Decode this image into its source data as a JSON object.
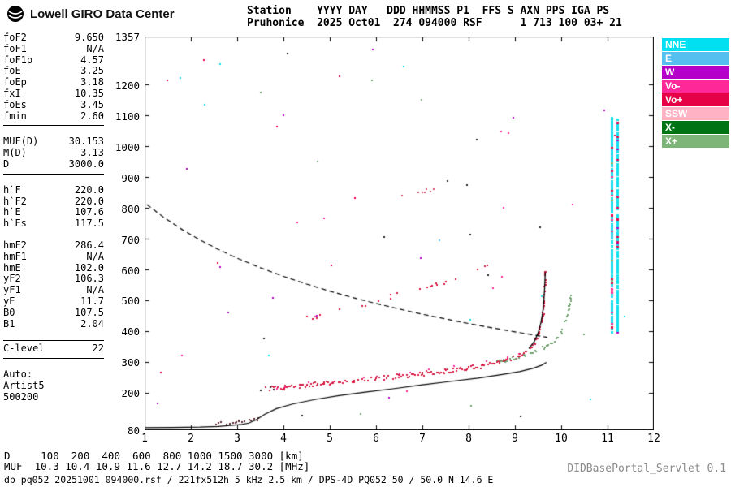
{
  "logo": {
    "text": "Lowell GIRO Data Center"
  },
  "header": {
    "line1": "Station    YYYY DAY   DDD HHMMSS P1  FFS S AXN PPS IGA PS",
    "line2": "Pruhonice  2025 Oct01  274 094000 RSF      1 713 100 03+ 21"
  },
  "panel": {
    "groups": [
      {
        "rows": [
          [
            "foF2",
            "9.650"
          ],
          [
            "foF1",
            "N/A"
          ],
          [
            "foF1p",
            "4.57"
          ],
          [
            "foE",
            "3.25"
          ],
          [
            "foEp",
            "3.18"
          ],
          [
            "fxI",
            "10.35"
          ],
          [
            "foEs",
            "3.45"
          ],
          [
            "fmin",
            "2.60"
          ]
        ],
        "sep_after": true
      },
      {
        "rows": [
          [
            "MUF(D)",
            "30.153"
          ],
          [
            "M(D)",
            "3.13"
          ],
          [
            "D",
            "3000.0"
          ]
        ],
        "sep_after": true
      },
      {
        "rows": [
          [
            "h`F",
            "220.0"
          ],
          [
            "h`F2",
            "220.0"
          ],
          [
            "h`E",
            "107.6"
          ],
          [
            "h`Es",
            "117.5"
          ]
        ]
      },
      {
        "rows": [
          [
            "hmF2",
            "286.4"
          ],
          [
            "hmF1",
            "N/A"
          ],
          [
            "hmE",
            "102.0"
          ],
          [
            "yF2",
            "106.3"
          ],
          [
            "yF1",
            "N/A"
          ],
          [
            "yE",
            "11.7"
          ],
          [
            "B0",
            "107.5"
          ],
          [
            "B1",
            "2.04"
          ]
        ]
      },
      {
        "rows": [
          [
            "C-level",
            "22"
          ]
        ],
        "sep_before": true,
        "sep_after": true
      },
      {
        "lines": [
          "Auto:",
          "Artist5",
          "500200"
        ]
      }
    ]
  },
  "legend": {
    "items": [
      {
        "label": "NNE",
        "color": "#00E0F0"
      },
      {
        "label": "E",
        "color": "#55C0F0"
      },
      {
        "label": "W",
        "color": "#B400C8"
      },
      {
        "label": "Vo-",
        "color": "#FF2898"
      },
      {
        "label": "Vo+",
        "color": "#E60046"
      },
      {
        "label": "SSW",
        "color": "#FFB2C4"
      },
      {
        "label": "X-",
        "color": "#007414"
      },
      {
        "label": "X+",
        "color": "#7DB478"
      }
    ]
  },
  "dmuf": {
    "d_label": "D",
    "distances": [
      "100",
      "200",
      "400",
      "600",
      "800",
      "1000",
      "1500",
      "3000"
    ],
    "d_unit": "[km]",
    "muf_label": "MUF",
    "muf_values": [
      "10.3",
      "10.4",
      "10.9",
      "11.6",
      "12.7",
      "14.2",
      "18.7",
      "30.2"
    ],
    "muf_unit": "[MHz]"
  },
  "footer": {
    "db_line": "db pq052 20251001 094000.rsf / 221fx512h 5 kHz 2.5 km / DPS-4D PQ052 50 / 50.0 N 14.6 E",
    "servlet": "DIDBasePortal_Servlet 0.1"
  },
  "chart_data": {
    "type": "scatter",
    "xlabel": "[MHz]",
    "ylabel": "[km]",
    "xlim": [
      1,
      12
    ],
    "ylim": [
      80,
      1357
    ],
    "x_ticks": [
      1,
      2,
      3,
      4,
      5,
      6,
      7,
      8,
      9,
      10,
      11,
      12
    ],
    "y_ticks": [
      1357,
      1200,
      1100,
      1000,
      900,
      800,
      700,
      600,
      500,
      400,
      300,
      200,
      80
    ],
    "grid": false,
    "legend_position": "right",
    "key_values": {
      "foF2_MHz": 9.65,
      "fxI_MHz": 10.35,
      "hmF2_km": 286.4,
      "hpF_km": 220.0,
      "MUF3000_MHz": 30.2
    },
    "series": [
      {
        "name": "interference-column-a",
        "kind": "column",
        "color": "#10DFEE",
        "x": 11.08,
        "w": 3,
        "gap": 5,
        "h_range": [
          395,
          1095
        ],
        "speckle": [
          "#E60046",
          "#FF2898",
          "#7DB478",
          "#55C0F0"
        ],
        "speckle_p": 0.12
      },
      {
        "name": "interference-column-b",
        "kind": "column",
        "color": "#10DFEE",
        "x": 11.2,
        "w": 3,
        "gap": 5,
        "h_range": [
          400,
          1090
        ],
        "speckle": [
          "#E60046",
          "#B400C8"
        ],
        "speckle_p": 0.1
      },
      {
        "name": "E-region-trace",
        "kind": "trace",
        "color": "#5A2830",
        "dot": 2,
        "jitter": 5,
        "density": 0.5,
        "step": 2,
        "points": [
          [
            2.55,
            102
          ],
          [
            2.85,
            106
          ],
          [
            3.15,
            110
          ],
          [
            3.45,
            116
          ]
        ]
      },
      {
        "name": "F-trace-leading-edge",
        "kind": "trace",
        "color": "#222222",
        "dot": 2,
        "jitter": 5,
        "density": 0.5,
        "step": 2,
        "points": [
          [
            3.5,
            214
          ],
          [
            3.8,
            218
          ]
        ]
      },
      {
        "name": "F-second-hop",
        "kind": "trace",
        "color": "#D81742",
        "dot": 2,
        "jitter": 9,
        "density": 0.4,
        "step": 3,
        "points": [
          [
            4.3,
            437
          ],
          [
            4.8,
            457
          ],
          [
            5.3,
            476
          ],
          [
            5.8,
            495
          ],
          [
            6.3,
            514
          ],
          [
            6.8,
            534
          ],
          [
            7.3,
            555
          ],
          [
            7.8,
            579
          ],
          [
            8.15,
            600
          ],
          [
            8.4,
            616
          ]
        ]
      },
      {
        "name": "F-third-hop",
        "kind": "trace",
        "color": "#D84C6E",
        "dot": 2,
        "jitter": 8,
        "density": 0.3,
        "step": 3,
        "points": [
          [
            6.3,
            833
          ],
          [
            6.7,
            845
          ],
          [
            7.1,
            855
          ],
          [
            7.5,
            868
          ]
        ]
      },
      {
        "name": "F-O-trace-vominus",
        "kind": "trace",
        "color": "#FF2898",
        "dot": 2,
        "jitter": 10,
        "density": 0.18,
        "step": 3,
        "points": [
          [
            3.7,
            222
          ],
          [
            5.0,
            241
          ],
          [
            6.5,
            263
          ],
          [
            8.0,
            288
          ],
          [
            9.0,
            320
          ],
          [
            9.4,
            370
          ]
        ]
      },
      {
        "name": "F-O-trace",
        "kind": "trace",
        "color": "#D81742",
        "dot": 2,
        "jitter": 7,
        "density": 0.85,
        "step": 2,
        "points": [
          [
            3.6,
            215
          ],
          [
            4.0,
            220
          ],
          [
            4.5,
            227
          ],
          [
            5.0,
            235
          ],
          [
            5.5,
            242
          ],
          [
            6.0,
            249
          ],
          [
            6.5,
            257
          ],
          [
            7.0,
            265
          ],
          [
            7.5,
            273
          ],
          [
            8.0,
            282
          ],
          [
            8.3,
            290
          ],
          [
            8.6,
            300
          ],
          [
            8.9,
            312
          ],
          [
            9.1,
            324
          ],
          [
            9.3,
            343
          ],
          [
            9.42,
            362
          ],
          [
            9.5,
            388
          ],
          [
            9.56,
            420
          ],
          [
            9.6,
            458
          ],
          [
            9.62,
            505
          ],
          [
            9.64,
            556
          ],
          [
            9.65,
            600
          ]
        ]
      },
      {
        "name": "F-X-trace",
        "kind": "trace",
        "color": "#6FA06F",
        "dot": 2,
        "jitter": 6,
        "density": 0.6,
        "step": 2,
        "points": [
          [
            8.55,
            300
          ],
          [
            8.9,
            312
          ],
          [
            9.2,
            324
          ],
          [
            9.45,
            338
          ],
          [
            9.7,
            356
          ],
          [
            9.9,
            378
          ],
          [
            10.0,
            400
          ],
          [
            10.08,
            430
          ],
          [
            10.14,
            465
          ],
          [
            10.18,
            495
          ],
          [
            10.21,
            518
          ]
        ]
      },
      {
        "name": "transmission-curve-3000km",
        "kind": "dashed",
        "color": "#000000",
        "width": 1.2,
        "dash": [
          6,
          4
        ],
        "points": [
          [
            1.05,
            812
          ],
          [
            1.4,
            772
          ],
          [
            1.8,
            732
          ],
          [
            2.2,
            697
          ],
          [
            2.6,
            666
          ],
          [
            3.0,
            638
          ],
          [
            3.5,
            607
          ],
          [
            4.0,
            579
          ],
          [
            4.5,
            554
          ],
          [
            5.0,
            531
          ],
          [
            5.5,
            510
          ],
          [
            6.0,
            491
          ],
          [
            6.5,
            473
          ],
          [
            7.0,
            456
          ],
          [
            7.5,
            441
          ],
          [
            8.0,
            426
          ],
          [
            8.5,
            412
          ],
          [
            9.0,
            399
          ],
          [
            9.4,
            389
          ],
          [
            9.7,
            381
          ]
        ]
      },
      {
        "name": "true-height-profile",
        "kind": "line",
        "color": "#000000",
        "width": 1.2,
        "points": [
          [
            1.0,
            88
          ],
          [
            1.6,
            89
          ],
          [
            2.2,
            90
          ],
          [
            2.6,
            92
          ],
          [
            2.9,
            96
          ],
          [
            3.1,
            99
          ],
          [
            3.25,
            103
          ],
          [
            3.4,
            113
          ],
          [
            3.6,
            132
          ],
          [
            3.85,
            150
          ],
          [
            4.2,
            165
          ],
          [
            4.7,
            180
          ],
          [
            5.2,
            192
          ],
          [
            5.8,
            204
          ],
          [
            6.4,
            215
          ],
          [
            7.0,
            227
          ],
          [
            7.6,
            238
          ],
          [
            8.2,
            249
          ],
          [
            8.7,
            260
          ],
          [
            9.1,
            270
          ],
          [
            9.4,
            281
          ],
          [
            9.58,
            291
          ],
          [
            9.68,
            300
          ]
        ]
      },
      {
        "name": "fitted-O-trace",
        "kind": "line",
        "color": "#000000",
        "width": 1.3,
        "points": [
          [
            9.3,
            345
          ],
          [
            9.42,
            368
          ],
          [
            9.5,
            395
          ],
          [
            9.56,
            428
          ],
          [
            9.6,
            462
          ],
          [
            9.625,
            500
          ],
          [
            9.64,
            538
          ],
          [
            9.65,
            572
          ],
          [
            9.655,
            592
          ]
        ]
      }
    ],
    "noise": {
      "count": 62,
      "flim": [
        1.2,
        11.9
      ],
      "hlim": [
        95,
        1330
      ],
      "colors": [
        "#10DFEE",
        "#E60046",
        "#FF2898",
        "#6FA06F",
        "#B400C8",
        "#55C0F0",
        "#222222"
      ]
    }
  }
}
